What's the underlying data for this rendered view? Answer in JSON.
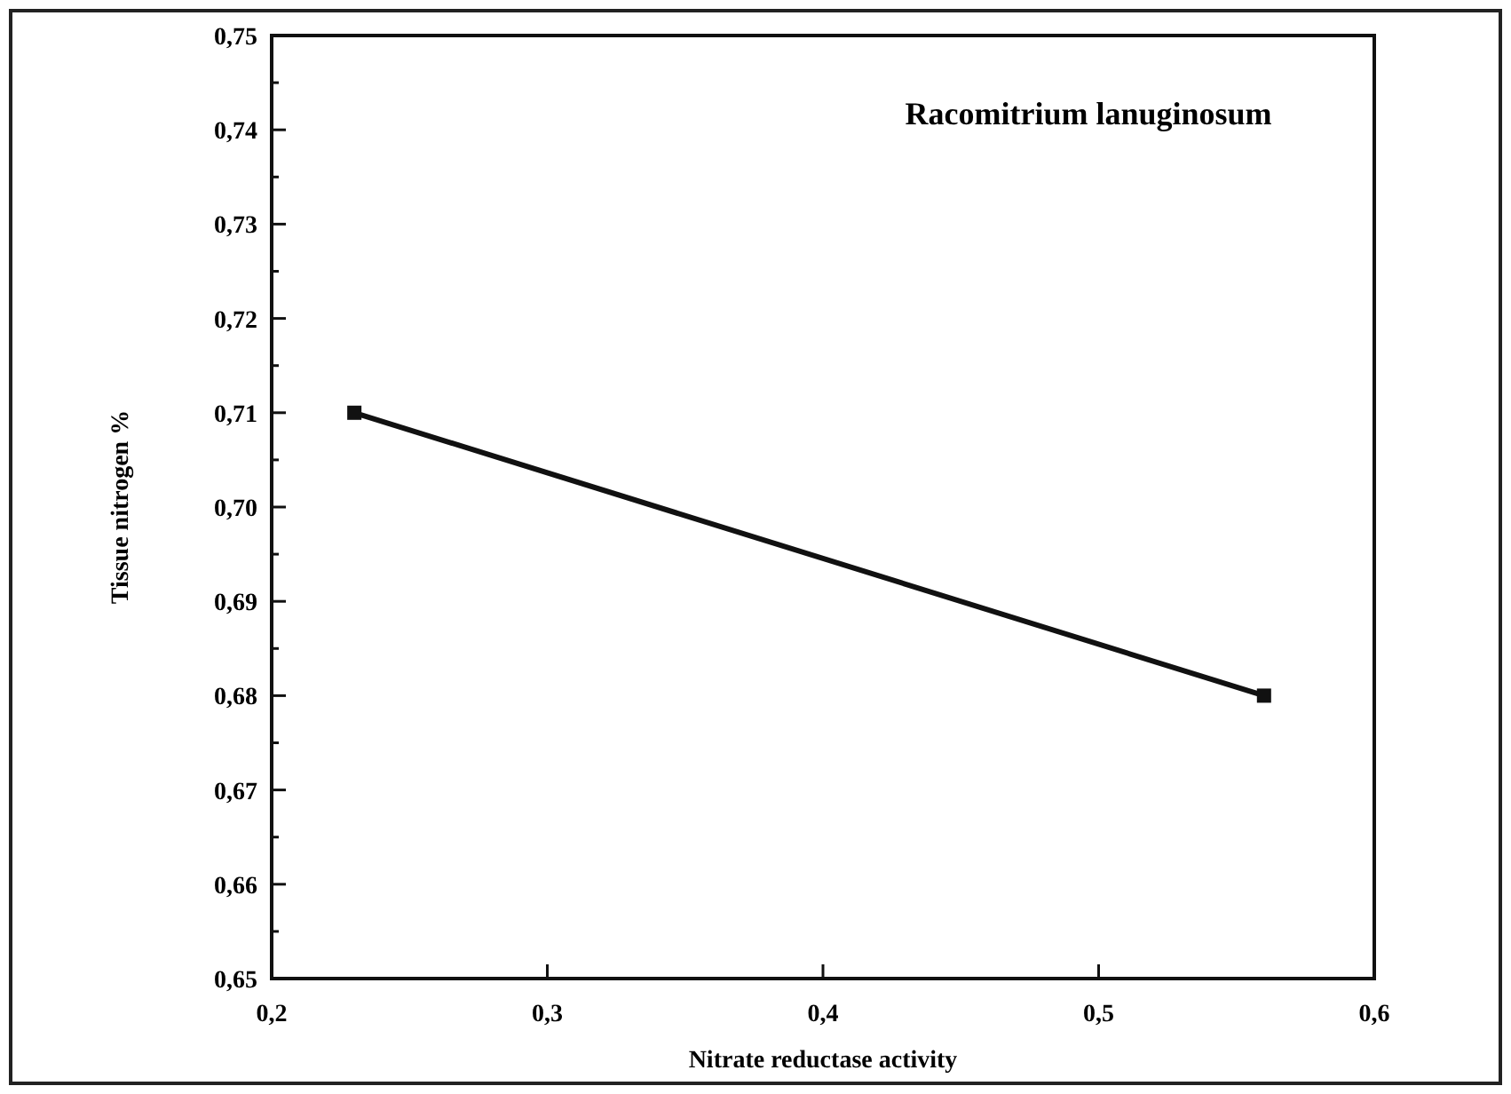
{
  "chart_data": {
    "type": "line",
    "title": "Racomitrium lanuginosum",
    "xlabel": "Nitrate reductase activity",
    "ylabel": "Tissue nitrogen %",
    "x": [
      0.23,
      0.56
    ],
    "series": [
      {
        "color": "#111111",
        "values": [
          0.71,
          0.68
        ]
      }
    ],
    "xlim": [
      0.2,
      0.6
    ],
    "xticks": [
      {
        "value": 0.2,
        "label": "0,2"
      },
      {
        "value": 0.3,
        "label": "0,3"
      },
      {
        "value": 0.4,
        "label": "0,4"
      },
      {
        "value": 0.5,
        "label": "0,5"
      },
      {
        "value": 0.6,
        "label": "0,6"
      }
    ],
    "ylim": [
      0.65,
      0.75
    ],
    "yticks": [
      {
        "value": 0.65,
        "label": "0,65"
      },
      {
        "value": 0.655,
        "label": null
      },
      {
        "value": 0.66,
        "label": "0,66"
      },
      {
        "value": 0.665,
        "label": null
      },
      {
        "value": 0.67,
        "label": "0,67"
      },
      {
        "value": 0.675,
        "label": null
      },
      {
        "value": 0.68,
        "label": "0,68"
      },
      {
        "value": 0.685,
        "label": null
      },
      {
        "value": 0.69,
        "label": "0,69"
      },
      {
        "value": 0.695,
        "label": null
      },
      {
        "value": 0.7,
        "label": "0,70"
      },
      {
        "value": 0.705,
        "label": null
      },
      {
        "value": 0.71,
        "label": "0,71"
      },
      {
        "value": 0.715,
        "label": null
      },
      {
        "value": 0.72,
        "label": "0,72"
      },
      {
        "value": 0.725,
        "label": null
      },
      {
        "value": 0.73,
        "label": "0,73"
      },
      {
        "value": 0.735,
        "label": null
      },
      {
        "value": 0.74,
        "label": "0,74"
      },
      {
        "value": 0.745,
        "label": null
      },
      {
        "value": 0.75,
        "label": "0,75"
      }
    ],
    "grid": false,
    "marker": "square",
    "line_style": "solid"
  }
}
